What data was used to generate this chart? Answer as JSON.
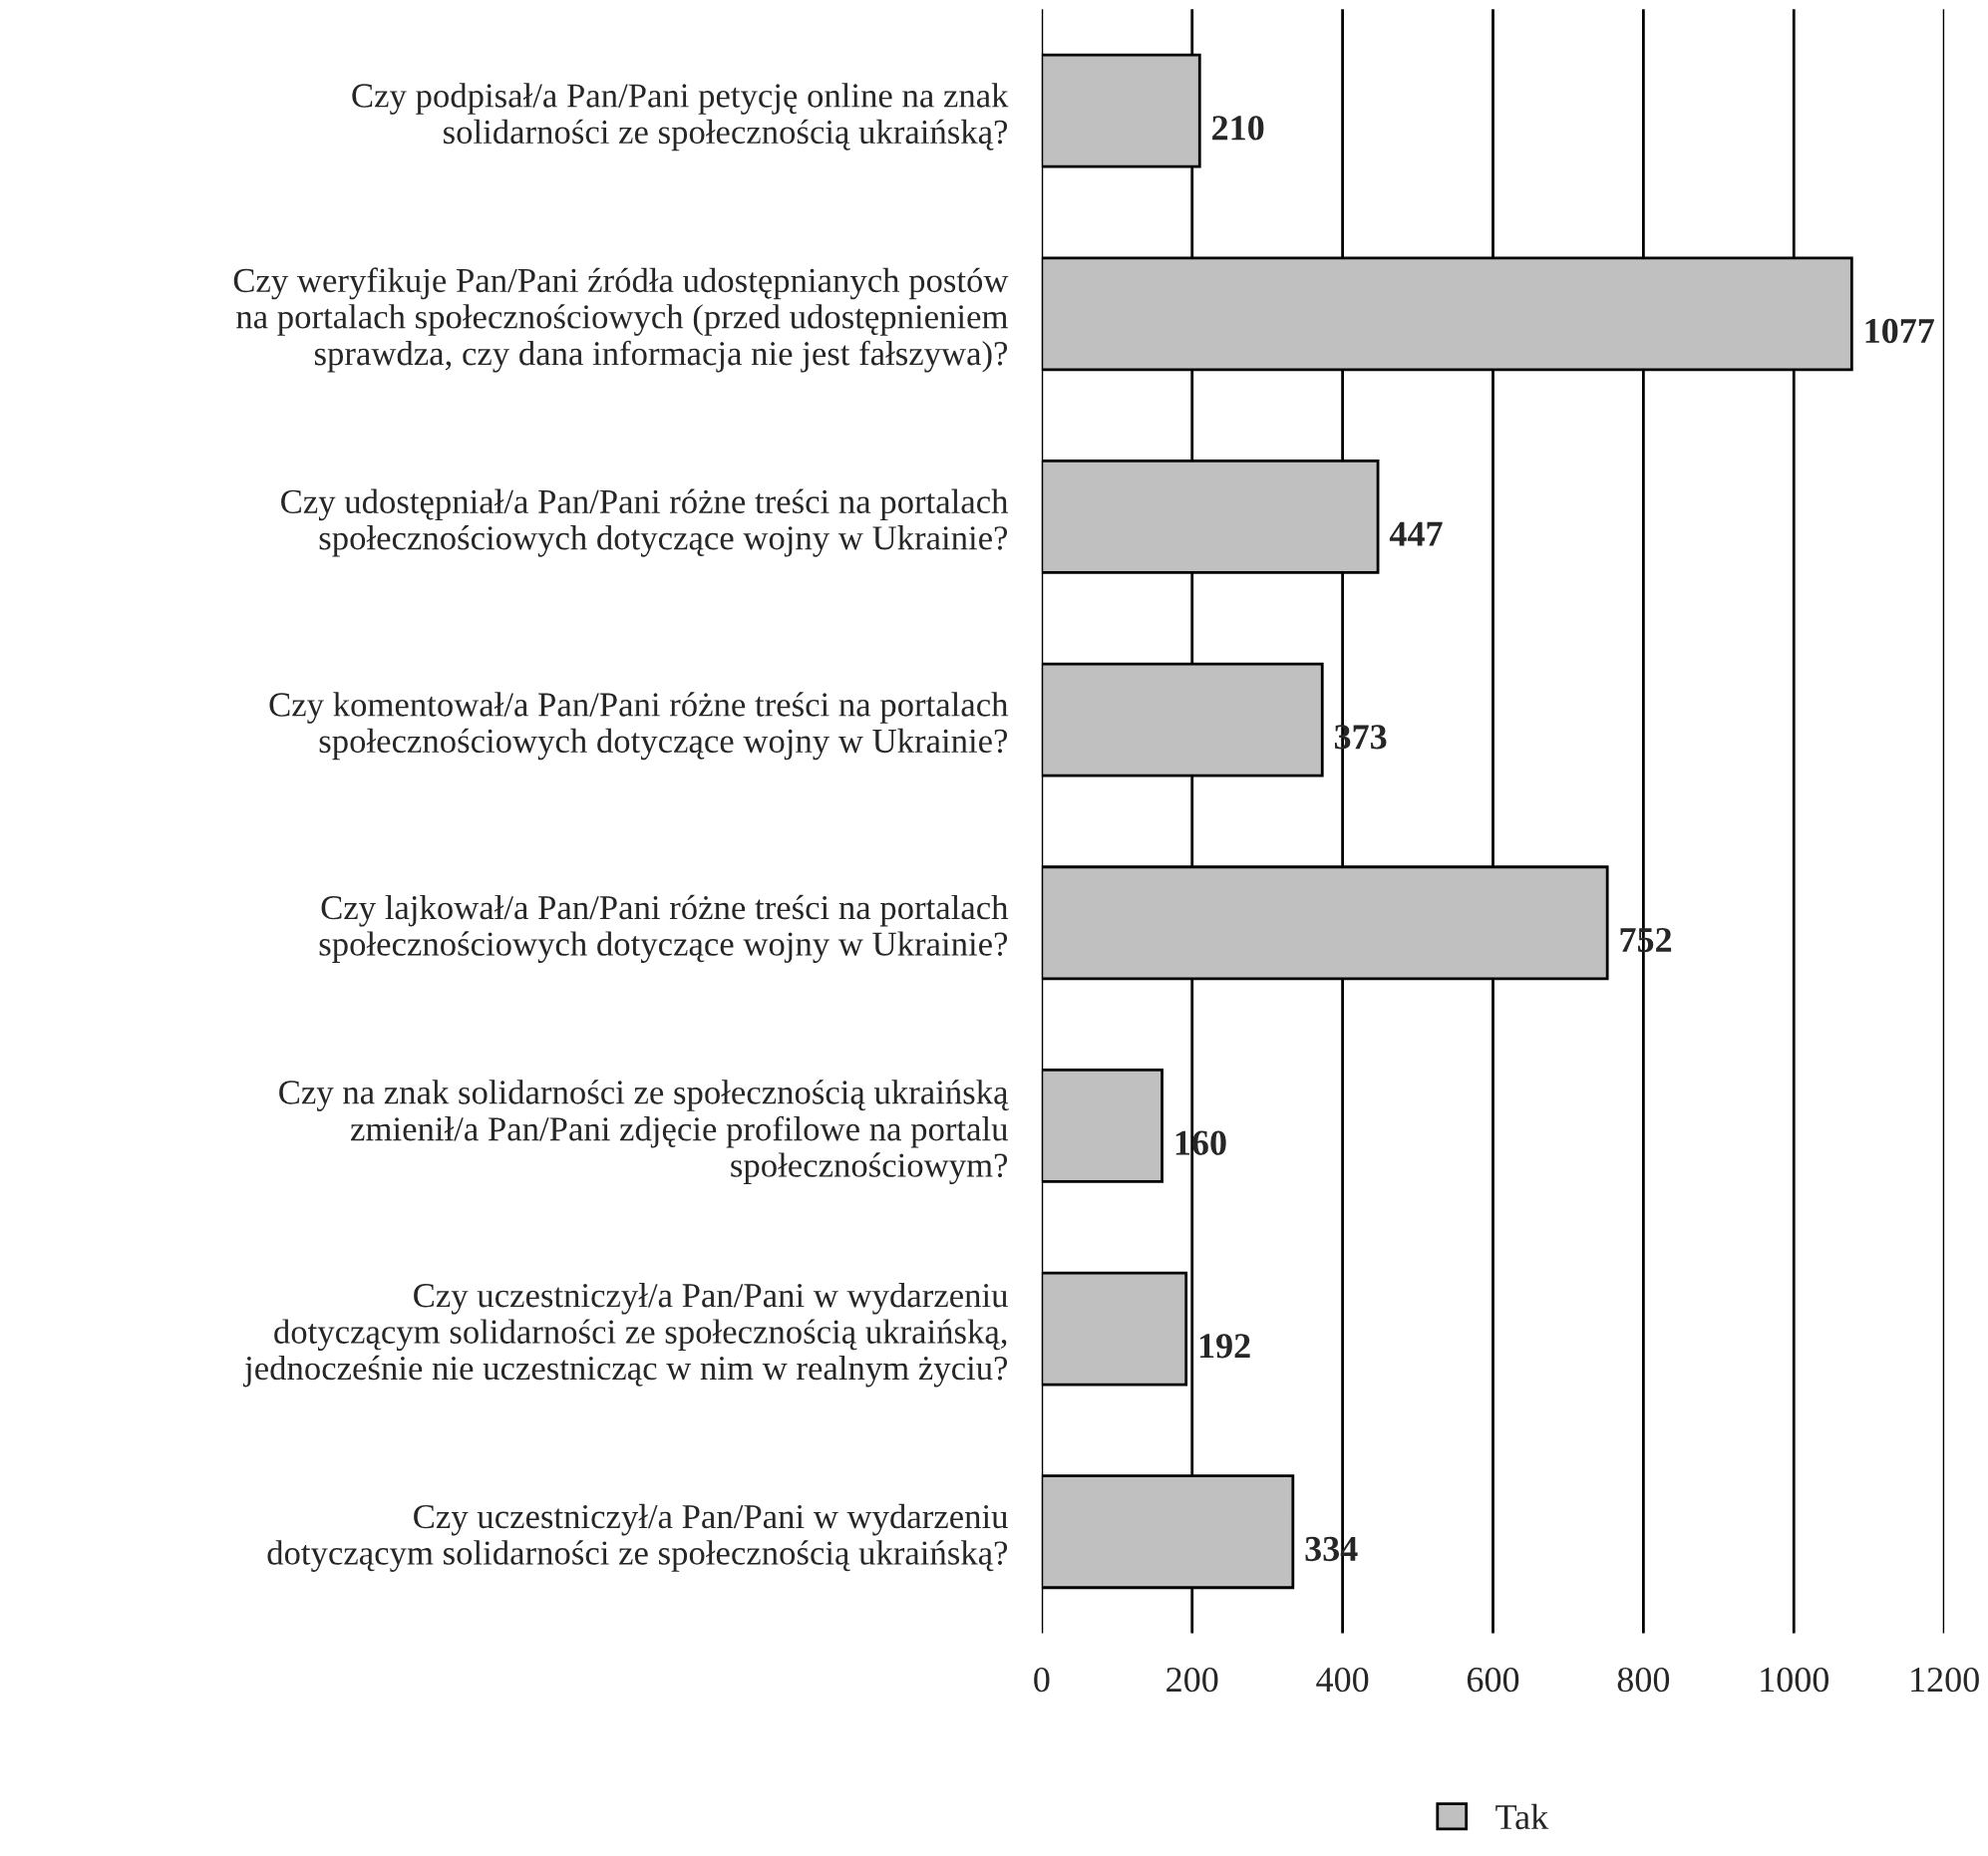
{
  "chart_data": {
    "type": "bar",
    "orientation": "horizontal",
    "categories": [
      "Czy podpisał/a Pan/Pani petycję online na znak\nsolidarności ze społecznością ukraińską?",
      "Czy weryfikuje Pan/Pani źródła udostępnianych postów\nna portalach społecznościowych (przed udostępnieniem\nsprawdza, czy dana informacja nie jest fałszywa)?",
      "Czy udostępniał/a Pan/Pani różne treści na portalach\nspołecznościowych dotyczące wojny w Ukrainie?",
      "Czy komentował/a Pan/Pani różne treści na portalach\nspołecznościowych dotyczące wojny w Ukrainie?",
      "Czy lajkował/a Pan/Pani różne treści na portalach\nspołecznościowych dotyczące wojny w Ukrainie?",
      "Czy na znak solidarności ze społecznością ukraińską\nzmienił/a Pan/Pani zdjęcie profilowe na portalu\nspołecznościowym?",
      "Czy uczestniczył/a Pan/Pani w wydarzeniu\ndotyczącym solidarności ze społecznością ukraińską,\njednocześnie nie uczestnicząc w nim w realnym życiu?",
      "Czy uczestniczył/a Pan/Pani w wydarzeniu\ndotyczącym solidarności ze społecznością ukraińską?"
    ],
    "series": [
      {
        "name": "Tak",
        "color": "#c0c0c0",
        "values": [
          210,
          1077,
          447,
          373,
          752,
          160,
          192,
          334
        ]
      }
    ],
    "xlim": [
      0,
      1200
    ],
    "xticks": [
      0,
      200,
      400,
      600,
      800,
      1000,
      1200
    ],
    "grid": "x",
    "legend": "bottom",
    "data_labels": true
  }
}
